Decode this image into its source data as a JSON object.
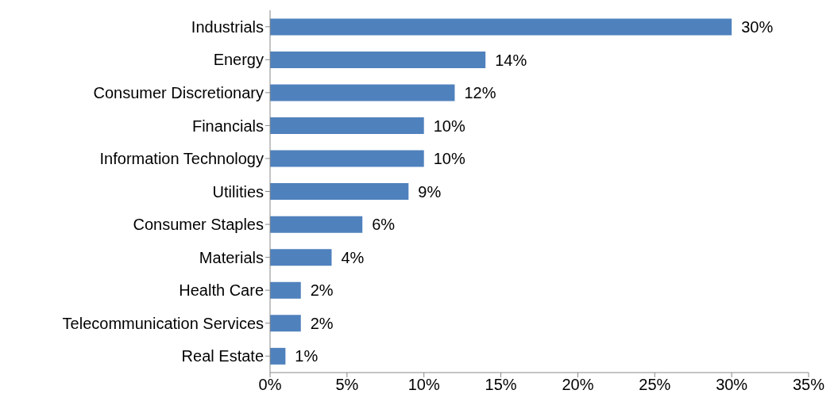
{
  "chart_data": {
    "type": "bar",
    "orientation": "horizontal",
    "categories": [
      "Industrials",
      "Energy",
      "Consumer Discretionary",
      "Financials",
      "Information Technology",
      "Utilities",
      "Consumer Staples",
      "Materials",
      "Health Care",
      "Telecommunication Services",
      "Real Estate"
    ],
    "values": [
      30,
      14,
      12,
      10,
      10,
      9,
      6,
      4,
      2,
      2,
      1
    ],
    "value_labels": [
      "30%",
      "14%",
      "12%",
      "10%",
      "10%",
      "9%",
      "6%",
      "4%",
      "2%",
      "2%",
      "1%"
    ],
    "color": "#4f81bd",
    "xlim": [
      0,
      35
    ],
    "xticks": [
      {
        "value": 0,
        "label": "0%"
      },
      {
        "value": 5,
        "label": "5%"
      },
      {
        "value": 10,
        "label": "10%"
      },
      {
        "value": 15,
        "label": "15%"
      },
      {
        "value": 20,
        "label": "20%"
      },
      {
        "value": 25,
        "label": "25%"
      },
      {
        "value": 30,
        "label": "30%"
      },
      {
        "value": 35,
        "label": "35%"
      }
    ]
  }
}
